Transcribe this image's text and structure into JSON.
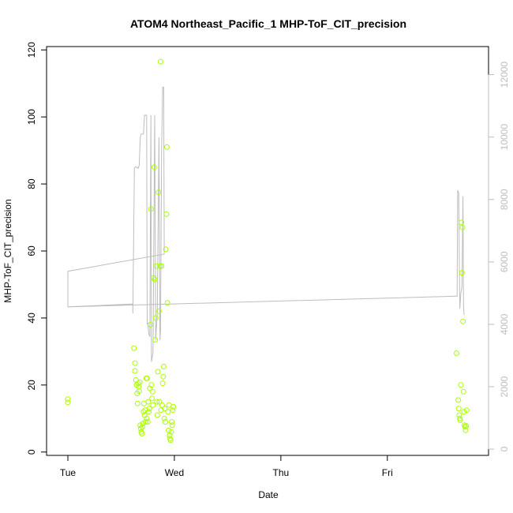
{
  "chart_data": {
    "type": "scatter",
    "title": "ATOM4 Northeast_Pacific_1 MHP-ToF_CIT_precision",
    "xlabel": "Date",
    "ylabel": "MHP-ToF_CIT_precision",
    "x_unit": "days since Tuesday 00:00",
    "xlim": [
      -0.2,
      3.95
    ],
    "ylim": [
      -1,
      121
    ],
    "x_ticks": [
      {
        "value": 0,
        "label": "Tue"
      },
      {
        "value": 1,
        "label": "Wed"
      },
      {
        "value": 2,
        "label": "Thu"
      },
      {
        "value": 3,
        "label": "Fri"
      }
    ],
    "y_ticks": [
      0,
      20,
      40,
      60,
      80,
      100,
      120
    ],
    "y2_ticks": [
      0,
      2000,
      4000,
      6000,
      8000,
      10000,
      12000
    ],
    "y2lim": [
      -200,
      12900
    ],
    "points_color": "#aaff00",
    "line_color": "#bdbdbd",
    "grid": false,
    "series": [
      {
        "kind": "points",
        "axis": "left",
        "points": [
          [
            0.0,
            15.8
          ],
          [
            0.0,
            14.8
          ],
          [
            0.62,
            31
          ],
          [
            0.63,
            26.5
          ],
          [
            0.63,
            24.2
          ],
          [
            0.64,
            21.5
          ],
          [
            0.645,
            20
          ],
          [
            0.65,
            17.5
          ],
          [
            0.655,
            14.5
          ],
          [
            0.66,
            20.5
          ],
          [
            0.665,
            19.5
          ],
          [
            0.67,
            18.2
          ],
          [
            0.675,
            20.8
          ],
          [
            0.68,
            8
          ],
          [
            0.685,
            7
          ],
          [
            0.69,
            6
          ],
          [
            0.695,
            5.5
          ],
          [
            0.7,
            7.5
          ],
          [
            0.705,
            8.5
          ],
          [
            0.71,
            12
          ],
          [
            0.715,
            14.5
          ],
          [
            0.72,
            11
          ],
          [
            0.725,
            12.5
          ],
          [
            0.73,
            9
          ],
          [
            0.735,
            22
          ],
          [
            0.74,
            10
          ],
          [
            0.745,
            22
          ],
          [
            0.75,
            9
          ],
          [
            0.755,
            15
          ],
          [
            0.76,
            12
          ],
          [
            0.765,
            13
          ],
          [
            0.77,
            19
          ],
          [
            0.775,
            38
          ],
          [
            0.78,
            72.5
          ],
          [
            0.785,
            20
          ],
          [
            0.79,
            16
          ],
          [
            0.795,
            18
          ],
          [
            0.8,
            14
          ],
          [
            0.805,
            52
          ],
          [
            0.81,
            85
          ],
          [
            0.815,
            51.5
          ],
          [
            0.82,
            33.5
          ],
          [
            0.825,
            40
          ],
          [
            0.83,
            55.5
          ],
          [
            0.835,
            15
          ],
          [
            0.84,
            11
          ],
          [
            0.845,
            24
          ],
          [
            0.85,
            77.5
          ],
          [
            0.855,
            42
          ],
          [
            0.86,
            15
          ],
          [
            0.865,
            55.5
          ],
          [
            0.87,
            116.5
          ],
          [
            0.875,
            12.5
          ],
          [
            0.88,
            55.5
          ],
          [
            0.885,
            14
          ],
          [
            0.89,
            20.5
          ],
          [
            0.895,
            22.5
          ],
          [
            0.9,
            25.5
          ],
          [
            0.905,
            10
          ],
          [
            0.91,
            13
          ],
          [
            0.915,
            9
          ],
          [
            0.92,
            60.5
          ],
          [
            0.925,
            71
          ],
          [
            0.93,
            91
          ],
          [
            0.935,
            44.5
          ],
          [
            0.94,
            12
          ],
          [
            0.945,
            6.5
          ],
          [
            0.95,
            14
          ],
          [
            0.955,
            5
          ],
          [
            0.96,
            4
          ],
          [
            0.965,
            3.5
          ],
          [
            0.97,
            6
          ],
          [
            0.975,
            9
          ],
          [
            0.98,
            8
          ],
          [
            0.985,
            12.5
          ],
          [
            0.99,
            13.5
          ],
          [
            3.65,
            29.5
          ],
          [
            3.665,
            15.5
          ],
          [
            3.67,
            13
          ],
          [
            3.675,
            11
          ],
          [
            3.68,
            10
          ],
          [
            3.685,
            9.5
          ],
          [
            3.69,
            20
          ],
          [
            3.695,
            68.5
          ],
          [
            3.7,
            53.5
          ],
          [
            3.705,
            67
          ],
          [
            3.71,
            39
          ],
          [
            3.715,
            18
          ],
          [
            3.72,
            12
          ],
          [
            3.725,
            8
          ],
          [
            3.73,
            7.5
          ],
          [
            3.735,
            6.5
          ],
          [
            3.74,
            7.8
          ],
          [
            3.745,
            12.5
          ]
        ]
      },
      {
        "kind": "line",
        "axis": "right",
        "points": [
          [
            0.0,
            5700
          ],
          [
            0.0,
            4560
          ],
          [
            0.61,
            4650
          ],
          [
            0.61,
            4350
          ],
          [
            0.625,
            9000
          ],
          [
            0.635,
            9050
          ],
          [
            0.66,
            9000
          ],
          [
            0.67,
            9100
          ],
          [
            0.68,
            10000
          ],
          [
            0.69,
            10100
          ],
          [
            0.7,
            10100
          ],
          [
            0.71,
            10100
          ],
          [
            0.72,
            10700
          ],
          [
            0.74,
            10700
          ],
          [
            0.745,
            4000
          ],
          [
            0.75,
            4050
          ],
          [
            0.76,
            3700
          ],
          [
            0.77,
            3600
          ],
          [
            0.78,
            10700
          ],
          [
            0.785,
            2800
          ],
          [
            0.8,
            3100
          ],
          [
            0.815,
            10700
          ],
          [
            0.825,
            3500
          ],
          [
            0.84,
            4400
          ],
          [
            0.855,
            10000
          ],
          [
            0.865,
            3500
          ],
          [
            0.87,
            3800
          ],
          [
            0.88,
            9500
          ],
          [
            0.89,
            11600
          ],
          [
            0.9,
            11600
          ],
          [
            0.905,
            6300
          ],
          [
            0.905,
            6250
          ],
          [
            0.0,
            5700
          ],
          [
            0.0,
            4560
          ],
          [
            3.65,
            4900
          ],
          [
            3.655,
            4900
          ],
          [
            3.66,
            8300
          ],
          [
            3.67,
            8200
          ],
          [
            3.68,
            4500
          ],
          [
            3.69,
            5000
          ],
          [
            3.7,
            5200
          ],
          [
            3.71,
            8100
          ],
          [
            3.715,
            4600
          ],
          [
            3.72,
            4300
          ]
        ]
      }
    ]
  }
}
